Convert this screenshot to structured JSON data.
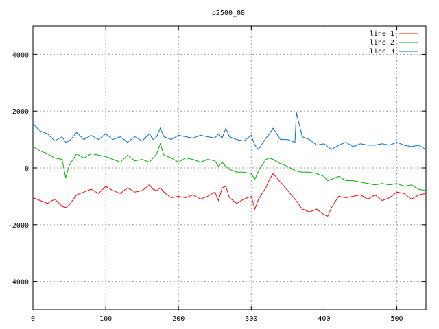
{
  "chart_data": {
    "type": "line",
    "title": "p2500_08",
    "xlabel": "",
    "ylabel": "",
    "xlim": [
      0,
      540
    ],
    "ylim": [
      -5000,
      5000
    ],
    "x_ticks": [
      0,
      100,
      200,
      300,
      400,
      500
    ],
    "y_ticks": [
      -4000,
      -2000,
      0,
      2000,
      4000
    ],
    "grid": true,
    "legend_position": "top-right",
    "series": [
      {
        "name": "line 1",
        "color": "#ff0000",
        "x": [
          0,
          10,
          20,
          30,
          40,
          45,
          50,
          60,
          70,
          80,
          90,
          100,
          110,
          120,
          130,
          140,
          150,
          160,
          165,
          170,
          175,
          180,
          190,
          200,
          210,
          220,
          230,
          240,
          250,
          255,
          260,
          265,
          270,
          280,
          290,
          300,
          305,
          310,
          320,
          325,
          330,
          340,
          350,
          360,
          370,
          380,
          390,
          400,
          405,
          410,
          420,
          430,
          440,
          450,
          460,
          470,
          480,
          490,
          500,
          510,
          520,
          530,
          540
        ],
        "values": [
          -1050,
          -1150,
          -1250,
          -1100,
          -1350,
          -1400,
          -1300,
          -950,
          -850,
          -750,
          -900,
          -650,
          -800,
          -900,
          -700,
          -850,
          -800,
          -600,
          -750,
          -800,
          -700,
          -850,
          -1050,
          -1000,
          -1050,
          -950,
          -1100,
          -1000,
          -850,
          -1150,
          -700,
          -650,
          -1050,
          -1250,
          -1100,
          -1000,
          -1450,
          -1100,
          -700,
          -400,
          -200,
          -500,
          -800,
          -1100,
          -1450,
          -1550,
          -1450,
          -1650,
          -1700,
          -1400,
          -1000,
          -1050,
          -1000,
          -950,
          -1100,
          -950,
          -1150,
          -1050,
          -850,
          -900,
          -1100,
          -950,
          -900
        ]
      },
      {
        "name": "line 2",
        "color": "#00b000",
        "x": [
          0,
          10,
          20,
          30,
          40,
          45,
          50,
          60,
          70,
          80,
          90,
          100,
          110,
          120,
          130,
          140,
          150,
          160,
          165,
          170,
          175,
          180,
          190,
          200,
          210,
          220,
          230,
          240,
          250,
          255,
          260,
          265,
          270,
          280,
          290,
          300,
          305,
          310,
          320,
          325,
          330,
          340,
          350,
          360,
          370,
          380,
          390,
          400,
          405,
          410,
          420,
          430,
          440,
          450,
          460,
          470,
          480,
          490,
          500,
          510,
          520,
          530,
          540
        ],
        "values": [
          750,
          600,
          500,
          350,
          300,
          -350,
          100,
          500,
          350,
          500,
          450,
          400,
          300,
          200,
          450,
          250,
          300,
          200,
          350,
          500,
          850,
          450,
          350,
          200,
          350,
          300,
          200,
          300,
          250,
          50,
          200,
          50,
          -50,
          -150,
          -150,
          -200,
          -400,
          -100,
          300,
          350,
          300,
          150,
          50,
          -100,
          -150,
          -150,
          -200,
          -300,
          -450,
          -400,
          -300,
          -450,
          -450,
          -500,
          -550,
          -600,
          -550,
          -600,
          -550,
          -650,
          -600,
          -750,
          -800
        ]
      },
      {
        "name": "line 3",
        "color": "#0070d0",
        "x": [
          0,
          10,
          20,
          30,
          40,
          45,
          50,
          60,
          70,
          80,
          90,
          100,
          110,
          120,
          130,
          140,
          150,
          160,
          165,
          170,
          175,
          180,
          190,
          200,
          210,
          220,
          230,
          240,
          250,
          255,
          260,
          265,
          270,
          280,
          290,
          300,
          305,
          310,
          320,
          325,
          330,
          340,
          350,
          360,
          362,
          370,
          380,
          390,
          400,
          405,
          410,
          420,
          430,
          440,
          450,
          460,
          470,
          480,
          490,
          500,
          510,
          520,
          530,
          540
        ],
        "values": [
          1550,
          1300,
          1200,
          950,
          1100,
          900,
          950,
          1250,
          1000,
          1150,
          1000,
          1200,
          1000,
          1100,
          900,
          1100,
          950,
          1200,
          1000,
          1100,
          1400,
          1100,
          1000,
          1150,
          1100,
          1050,
          1150,
          1100,
          1050,
          1200,
          1050,
          1400,
          1100,
          1000,
          950,
          1150,
          800,
          650,
          1050,
          1200,
          1400,
          1000,
          1000,
          900,
          1950,
          1100,
          1000,
          800,
          850,
          750,
          650,
          800,
          900,
          750,
          850,
          800,
          800,
          850,
          800,
          900,
          800,
          750,
          800,
          650
        ]
      }
    ]
  }
}
